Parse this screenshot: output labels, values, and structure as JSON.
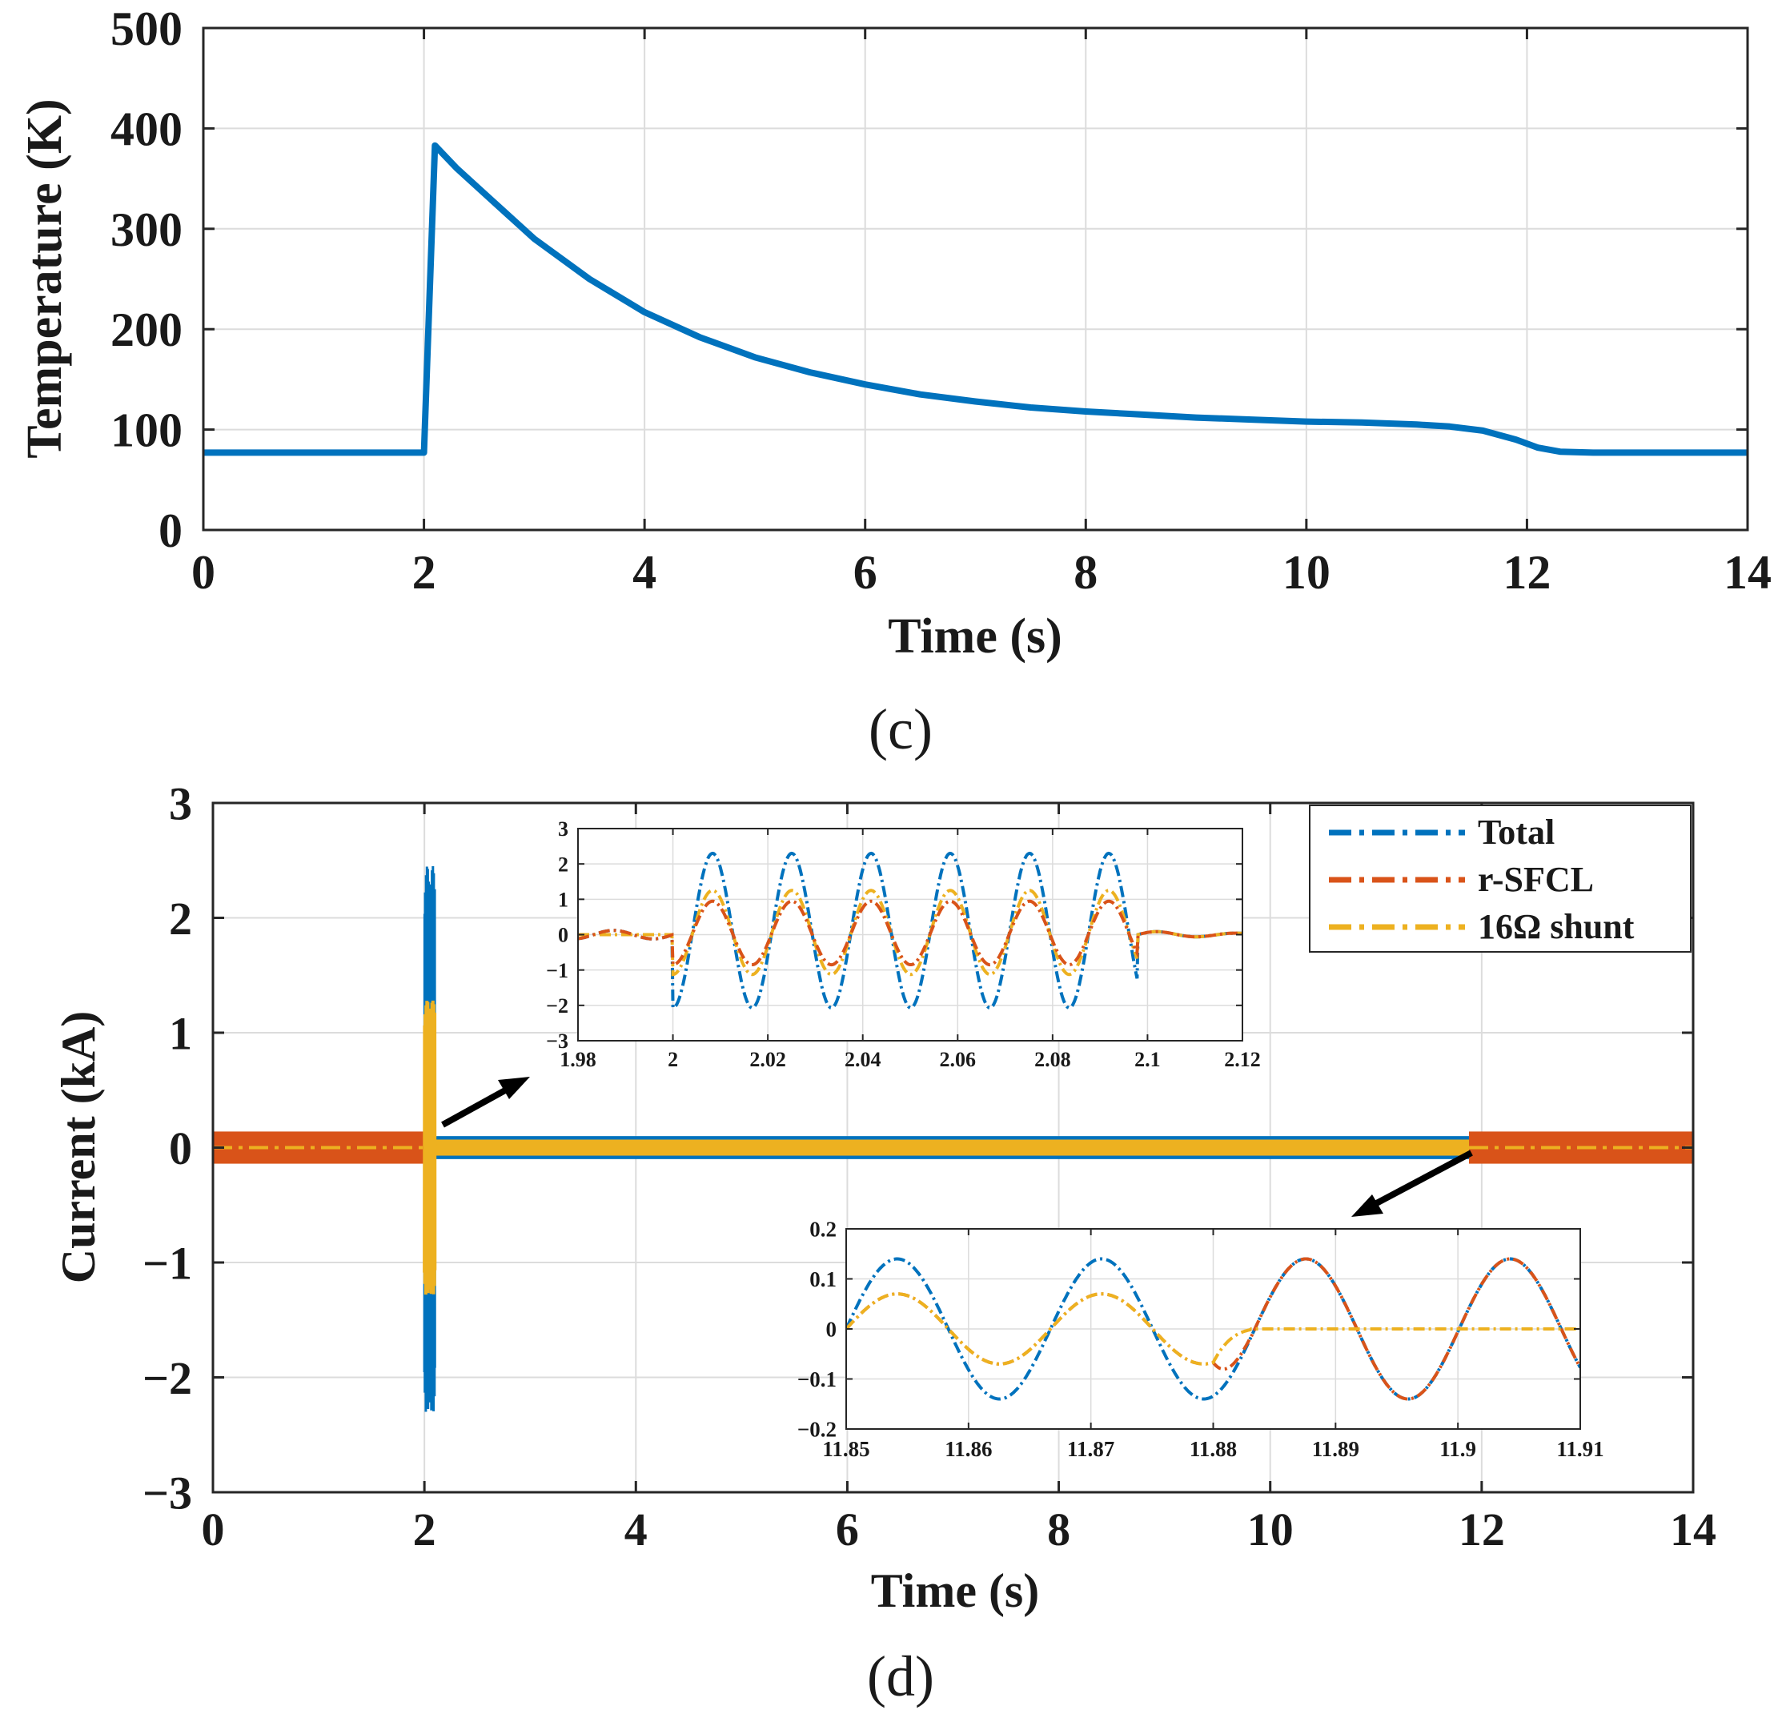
{
  "chart_data": [
    {
      "id": "c",
      "type": "line",
      "caption": "(c)",
      "xlabel": "Time (s)",
      "ylabel": "Temperature (K)",
      "xlim": [
        0,
        14
      ],
      "ylim": [
        0,
        500
      ],
      "xticks": [
        0,
        2,
        4,
        6,
        8,
        10,
        12,
        14
      ],
      "yticks": [
        0,
        100,
        200,
        300,
        400,
        500
      ],
      "xtick_labels": [
        "0",
        "2",
        "4",
        "6",
        "8",
        "10",
        "12",
        "14"
      ],
      "ytick_labels": [
        "0",
        "100",
        "200",
        "300",
        "400",
        "500"
      ],
      "grid": true,
      "series": [
        {
          "name": "Temperature",
          "color": "#0072BD",
          "x": [
            0,
            2.0,
            2.1,
            2.3,
            2.6,
            3.0,
            3.5,
            4.0,
            4.5,
            5.0,
            5.5,
            6.0,
            6.5,
            7.0,
            7.5,
            8.0,
            8.5,
            9.0,
            9.5,
            10.0,
            10.5,
            11.0,
            11.3,
            11.6,
            11.9,
            12.1,
            12.3,
            12.6,
            14
          ],
          "y": [
            77,
            77,
            383,
            360,
            330,
            290,
            250,
            217,
            192,
            172,
            157,
            145,
            135,
            128,
            122,
            118,
            115,
            112,
            110,
            108,
            107,
            105,
            103,
            99,
            90,
            82,
            78,
            77,
            77
          ]
        }
      ]
    },
    {
      "id": "d",
      "type": "line",
      "caption": "(d)",
      "xlabel": "Time (s)",
      "ylabel": "Current (kA)",
      "xlim": [
        0,
        14
      ],
      "ylim": [
        -3,
        3
      ],
      "xticks": [
        0,
        2,
        4,
        6,
        8,
        10,
        12,
        14
      ],
      "yticks": [
        -3,
        -2,
        -1,
        0,
        1,
        2,
        3
      ],
      "xtick_labels": [
        "0",
        "2",
        "4",
        "6",
        "8",
        "10",
        "12",
        "14"
      ],
      "ytick_labels": [
        "−3",
        "−2",
        "−1",
        "0",
        "1",
        "2",
        "3"
      ],
      "grid": true,
      "legend_position": "top-right",
      "legend": [
        {
          "name": "Total",
          "color": "#0072BD"
        },
        {
          "name": "r-SFCL",
          "color": "#D95319"
        },
        {
          "name": "16Ω shunt",
          "color": "#EDB120"
        }
      ],
      "series": [
        {
          "name": "Total",
          "envelope_steady_kA": 0.14,
          "fault_window_s": [
            2.0,
            2.1
          ],
          "fault_peak_kA": [
            2.45,
            -2.3
          ],
          "post_fault_envelope_kA": 0.1
        },
        {
          "name": "r-SFCL",
          "envelope_steady_kA": 0.14,
          "limiting_window_s": [
            2.1,
            11.88
          ]
        },
        {
          "name": "16Ω shunt",
          "fault_peak_kA": [
            1.28,
            -1.28
          ],
          "post_fault_envelope_kA": 0.07,
          "active_window_s": [
            2.0,
            11.88
          ]
        }
      ],
      "insets": [
        {
          "id": "d-inset-1",
          "xlim": [
            1.98,
            2.12
          ],
          "ylim": [
            -3,
            3
          ],
          "xticks": [
            1.98,
            2,
            2.02,
            2.04,
            2.06,
            2.08,
            2.1,
            2.12
          ],
          "xtick_labels": [
            "1.98",
            "2",
            "2.02",
            "2.04",
            "2.06",
            "2.08",
            "2.1",
            "2.12"
          ],
          "yticks": [
            -3,
            -2,
            -1,
            0,
            1,
            2,
            3
          ],
          "ytick_labels": [
            "−3",
            "−2",
            "−1",
            "0",
            "1",
            "2",
            "3"
          ],
          "period_s": 0.0167,
          "fault_start_s": 2.0,
          "fault_end_s": 2.098,
          "total_amplitude_kA": 2.3,
          "rsfcl_amplitude_kA": 1.05,
          "shunt_amplitude_kA": 1.25
        },
        {
          "id": "d-inset-2",
          "xlim": [
            11.85,
            11.91
          ],
          "ylim": [
            -0.2,
            0.2
          ],
          "xticks": [
            11.85,
            11.86,
            11.87,
            11.88,
            11.89,
            11.9,
            11.91
          ],
          "xtick_labels": [
            "11.85",
            "11.86",
            "11.87",
            "11.88",
            "11.89",
            "11.9",
            "11.91"
          ],
          "yticks": [
            -0.2,
            -0.1,
            0,
            0.1,
            0.2
          ],
          "ytick_labels": [
            "−0.2",
            "−0.1",
            "0",
            "0.1",
            "0.2"
          ],
          "period_s": 0.0167,
          "total_amplitude_kA": 0.14,
          "shunt_amplitude_kA": 0.07,
          "recovery_s": 11.88
        }
      ]
    }
  ]
}
